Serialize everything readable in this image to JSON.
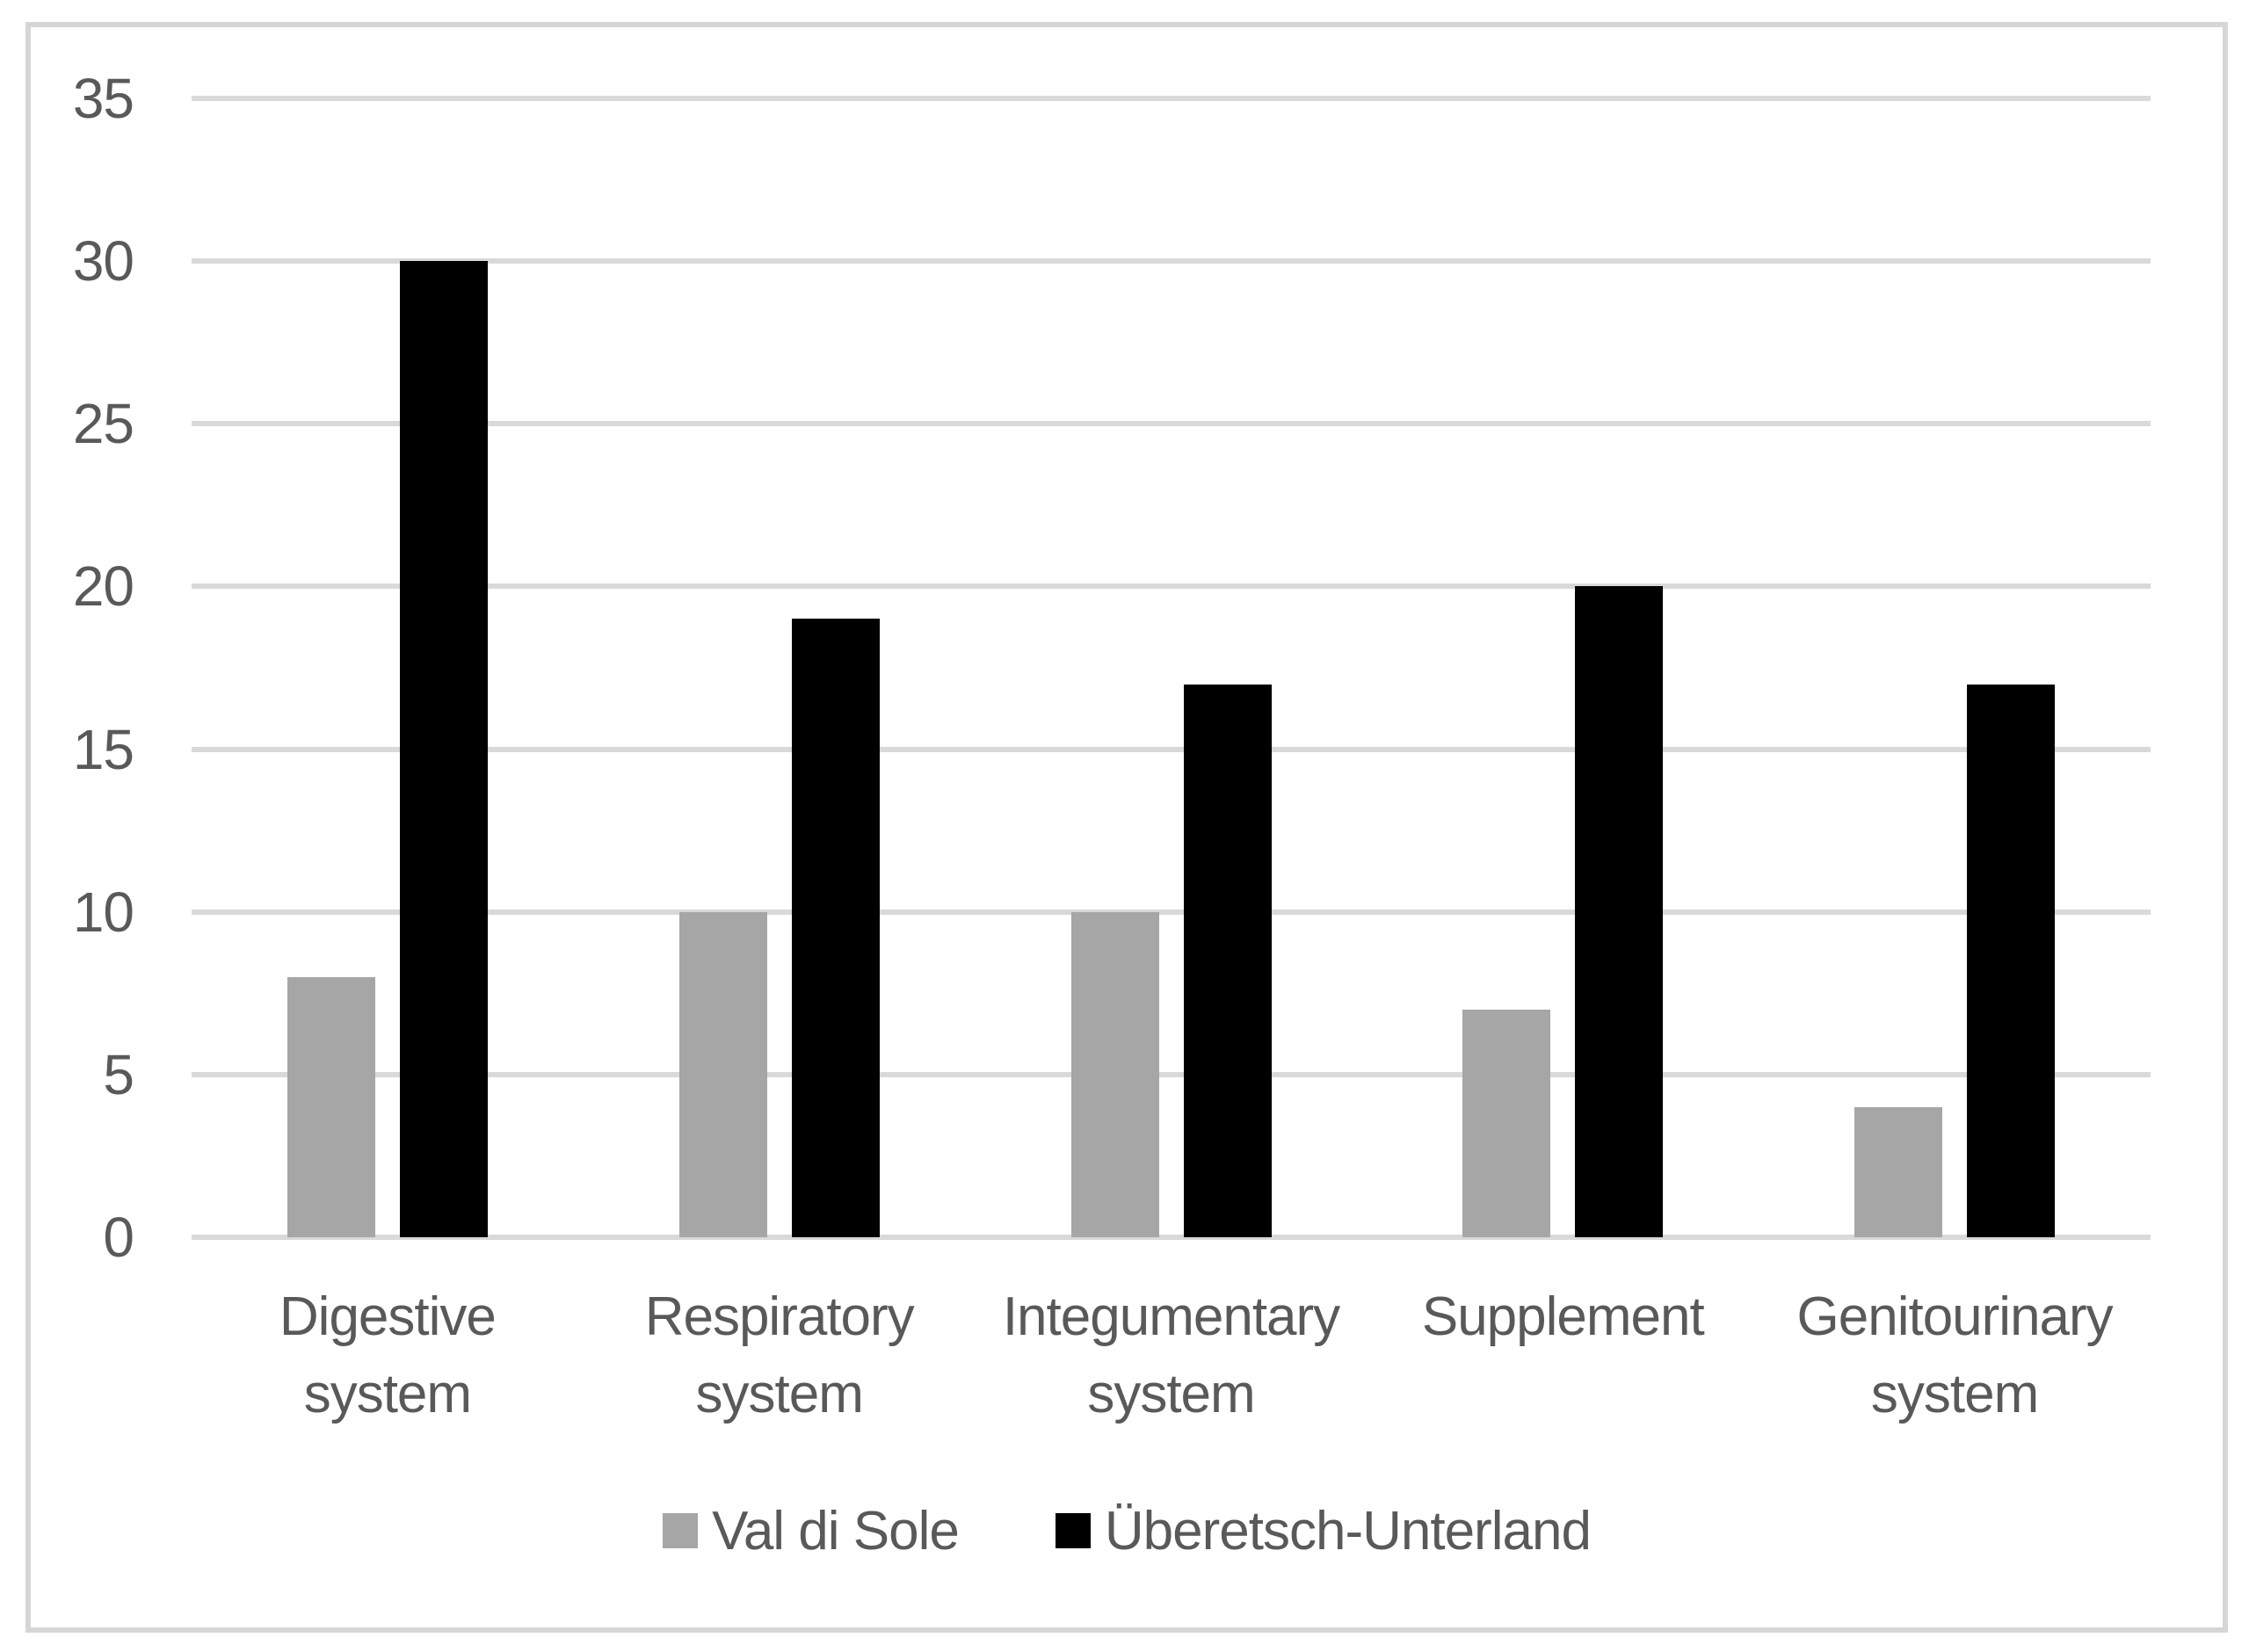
{
  "chart_data": {
    "type": "bar",
    "title": "",
    "categories": [
      "Digestive system",
      "Respiratory system",
      "Integumentary system",
      "Supplement",
      "Genitourinary system"
    ],
    "series": [
      {
        "name": "Val di Sole",
        "color": "#a6a6a6",
        "values": [
          8,
          10,
          10,
          7,
          4
        ]
      },
      {
        "name": "Überetsch-Unterland",
        "color": "#000000",
        "values": [
          30,
          19,
          17,
          20,
          17
        ]
      }
    ],
    "y_ticks": [
      0,
      5,
      10,
      15,
      20,
      25,
      30,
      35
    ],
    "ylim": [
      0,
      35
    ],
    "xlabel": "",
    "ylabel": "",
    "grid": true,
    "legend_position": "bottom",
    "gridline_color": "#d9d9d9",
    "tick_label_color": "#595959",
    "frame_color": "#d6d6d6"
  }
}
